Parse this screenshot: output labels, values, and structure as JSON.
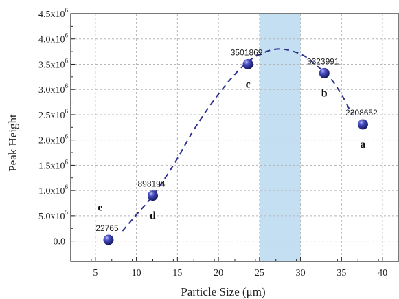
{
  "chart_data": {
    "type": "scatter",
    "title": "",
    "xlabel": "Particle Size (μm)",
    "ylabel": "Peak Height",
    "xlim": [
      2,
      42
    ],
    "ylim": [
      -400000,
      4500000
    ],
    "x_ticks": [
      5,
      10,
      15,
      20,
      25,
      30,
      35,
      40
    ],
    "y_ticks": [
      {
        "value": 0,
        "label": "0.0"
      },
      {
        "value": 500000,
        "label": "5.0x10",
        "exp": "5"
      },
      {
        "value": 1000000,
        "label": "1.0x10",
        "exp": "6"
      },
      {
        "value": 1500000,
        "label": "1.5x10",
        "exp": "6"
      },
      {
        "value": 2000000,
        "label": "2.0x10",
        "exp": "6"
      },
      {
        "value": 2500000,
        "label": "2.5x10",
        "exp": "6"
      },
      {
        "value": 3000000,
        "label": "3.0x10",
        "exp": "6"
      },
      {
        "value": 3500000,
        "label": "3.5x10",
        "exp": "6"
      },
      {
        "value": 4000000,
        "label": "4.0x10",
        "exp": "6"
      },
      {
        "value": 4500000,
        "label": "4.5x10",
        "exp": "6"
      }
    ],
    "grid": true,
    "points": [
      {
        "x": 6.6,
        "y": 22765,
        "label": "22765",
        "letter": ""
      },
      {
        "x": 12.0,
        "y": 898194,
        "label": "898194",
        "letter": "d"
      },
      {
        "x": 23.6,
        "y": 3501869,
        "label": "3501869",
        "letter": "c"
      },
      {
        "x": 32.9,
        "y": 3323991,
        "label": "3323991",
        "letter": "b"
      },
      {
        "x": 37.6,
        "y": 2308652,
        "label": "2308652",
        "letter": "a"
      }
    ],
    "extra_letters": [
      {
        "x": 6.6,
        "y": 600000,
        "letter": "e"
      }
    ],
    "highlight_band": {
      "x0": 25,
      "x1": 30,
      "color": "#c5dff2"
    },
    "fit_curve": [
      [
        8.3,
        200000
      ],
      [
        10,
        520000
      ],
      [
        12,
        900000
      ],
      [
        14.5,
        1500000
      ],
      [
        17,
        2200000
      ],
      [
        19.5,
        2800000
      ],
      [
        22,
        3300000
      ],
      [
        24,
        3600000
      ],
      [
        26,
        3760000
      ],
      [
        27.5,
        3800000
      ],
      [
        29,
        3760000
      ],
      [
        30.5,
        3660000
      ],
      [
        32,
        3470000
      ],
      [
        33.5,
        3250000
      ],
      [
        35,
        2900000
      ],
      [
        36.3,
        2500000
      ]
    ],
    "colors": {
      "point": "#2b2f8f",
      "curve": "#2b2f8f",
      "grid": "#b5b5b5",
      "band": "#c5dff2"
    }
  }
}
